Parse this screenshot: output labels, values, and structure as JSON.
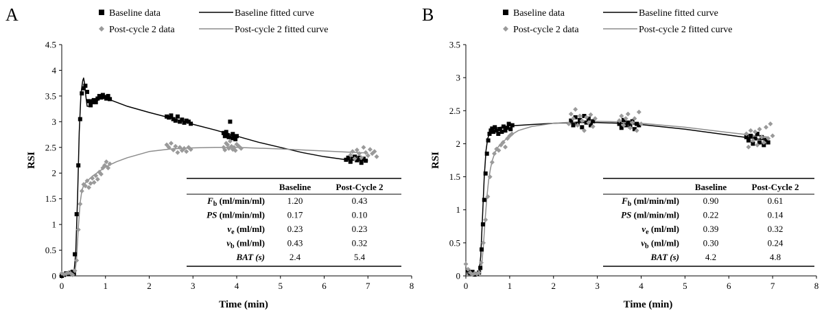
{
  "legend": {
    "baseline_data": "Baseline data",
    "baseline_fit": "Baseline fitted curve",
    "post_data": "Post-cycle 2 data",
    "post_fit": "Post-cycle 2 fitted curve"
  },
  "colors": {
    "baseline": "#000000",
    "post": "#8c8c8c",
    "post_marker": "#9a9a9a"
  },
  "table_header": {
    "col1": "Baseline",
    "col2": "Post-Cycle 2"
  },
  "table_params": [
    {
      "sym": "F",
      "sub": "b",
      "unit": " (ml/min/ml)",
      "symItalic": true
    },
    {
      "sym": "PS",
      "sub": "",
      "unit": " (ml/min/ml)",
      "symItalic": true
    },
    {
      "sym": "v",
      "sub": "e",
      "unit": " (ml/ml)",
      "symItalic": true
    },
    {
      "sym": "v",
      "sub": "b",
      "unit": " (ml/ml)",
      "symItalic": true
    },
    {
      "sym": "BAT (s)",
      "sub": "",
      "unit": "",
      "symItalic": true
    }
  ],
  "chart_data": [
    {
      "panel": "A",
      "type": "scatter",
      "xlabel": "Time (min)",
      "ylabel": "RSI",
      "xlim": [
        0,
        8
      ],
      "ylim": [
        0,
        4.5
      ],
      "xticks": [
        "0",
        "1",
        "2",
        "3",
        "4",
        "5",
        "6",
        "7",
        "8"
      ],
      "yticks": [
        "0",
        "0.5",
        "1",
        "1.5",
        "2",
        "2.5",
        "3",
        "3.5",
        "4",
        "4.5"
      ],
      "table": {
        "baseline": [
          "1.20",
          "0.17",
          "0.23",
          "0.43",
          "2.4"
        ],
        "post": [
          "0.43",
          "0.10",
          "0.23",
          "0.32",
          "5.4"
        ]
      },
      "series": [
        {
          "name": "Baseline data",
          "kind": "points",
          "x": [
            0.0,
            0.05,
            0.1,
            0.15,
            0.2,
            0.25,
            0.28,
            0.3,
            0.34,
            0.38,
            0.42,
            0.46,
            0.5,
            0.54,
            0.58,
            0.62,
            0.66,
            0.7,
            0.74,
            0.78,
            0.82,
            0.86,
            0.9,
            0.94,
            0.98,
            1.02,
            1.06,
            1.1,
            2.4,
            2.45,
            2.5,
            2.55,
            2.6,
            2.65,
            2.7,
            2.75,
            2.8,
            2.85,
            2.9,
            2.95,
            3.7,
            3.73,
            3.76,
            3.79,
            3.82,
            3.85,
            3.88,
            3.91,
            3.94,
            3.97,
            4.0,
            6.5,
            6.55,
            6.6,
            6.65,
            6.7,
            6.75,
            6.8,
            6.85,
            6.9,
            6.95
          ],
          "y": [
            0.0,
            0.02,
            0.05,
            0.04,
            0.06,
            0.08,
            0.05,
            0.42,
            1.2,
            2.15,
            3.05,
            3.55,
            3.65,
            3.7,
            3.58,
            3.4,
            3.32,
            3.38,
            3.42,
            3.38,
            3.45,
            3.5,
            3.47,
            3.52,
            3.48,
            3.45,
            3.5,
            3.44,
            3.1,
            3.08,
            3.12,
            3.05,
            3.02,
            3.1,
            3.0,
            3.04,
            2.98,
            3.02,
            3.0,
            2.96,
            2.78,
            2.72,
            2.8,
            2.74,
            2.7,
            3.0,
            2.68,
            2.76,
            2.7,
            2.66,
            2.72,
            2.26,
            2.3,
            2.22,
            2.28,
            2.32,
            2.25,
            2.3,
            2.2,
            2.28,
            2.24
          ]
        },
        {
          "name": "Post-cycle 2 data",
          "kind": "points",
          "x": [
            0.0,
            0.05,
            0.1,
            0.15,
            0.2,
            0.25,
            0.3,
            0.34,
            0.38,
            0.42,
            0.46,
            0.5,
            0.54,
            0.58,
            0.62,
            0.66,
            0.7,
            0.74,
            0.78,
            0.82,
            0.86,
            0.9,
            0.94,
            0.98,
            1.02,
            1.06,
            1.1,
            2.4,
            2.45,
            2.5,
            2.55,
            2.6,
            2.65,
            2.7,
            2.75,
            2.8,
            2.85,
            2.9,
            2.95,
            3.7,
            3.73,
            3.76,
            3.79,
            3.82,
            3.85,
            3.88,
            3.91,
            3.94,
            3.97,
            4.0,
            4.05,
            4.1,
            6.6,
            6.65,
            6.7,
            6.75,
            6.8,
            6.85,
            6.9,
            6.95,
            7.0,
            7.05,
            7.1,
            7.15,
            7.2
          ],
          "y": [
            0.05,
            0.03,
            0.04,
            0.06,
            0.05,
            0.02,
            0.1,
            0.3,
            0.9,
            1.4,
            1.65,
            1.78,
            1.75,
            1.85,
            1.72,
            1.8,
            1.9,
            1.82,
            1.95,
            1.88,
            2.02,
            1.98,
            2.1,
            2.15,
            2.22,
            2.1,
            2.18,
            2.55,
            2.5,
            2.58,
            2.45,
            2.52,
            2.4,
            2.5,
            2.44,
            2.48,
            2.42,
            2.5,
            2.46,
            2.5,
            2.45,
            2.58,
            2.55,
            2.48,
            2.62,
            2.52,
            2.46,
            2.5,
            2.44,
            2.56,
            2.52,
            2.48,
            2.35,
            2.42,
            2.28,
            2.45,
            2.38,
            2.3,
            2.5,
            2.4,
            2.34,
            2.46,
            2.38,
            2.42,
            2.32
          ]
        },
        {
          "name": "Baseline fitted curve",
          "kind": "line",
          "x": [
            0,
            0.28,
            0.32,
            0.36,
            0.4,
            0.44,
            0.48,
            0.5,
            0.52,
            0.55,
            0.58,
            0.62,
            0.66,
            0.7,
            0.75,
            0.8,
            0.85,
            0.9,
            1.0,
            1.5,
            2.0,
            2.5,
            3.0,
            3.5,
            4.0,
            4.5,
            5.0,
            5.5,
            6.0,
            6.5,
            7.0
          ],
          "y": [
            0.04,
            0.06,
            0.45,
            1.5,
            2.8,
            3.55,
            3.8,
            3.85,
            3.75,
            3.5,
            3.3,
            3.3,
            3.4,
            3.45,
            3.35,
            3.38,
            3.46,
            3.48,
            3.46,
            3.3,
            3.18,
            3.07,
            2.95,
            2.84,
            2.72,
            2.6,
            2.5,
            2.4,
            2.32,
            2.26,
            2.24
          ]
        },
        {
          "name": "Post-cycle 2 fitted curve",
          "kind": "line",
          "x": [
            0,
            0.3,
            0.34,
            0.38,
            0.42,
            0.46,
            0.5,
            0.55,
            0.6,
            0.7,
            0.8,
            0.9,
            1.0,
            1.25,
            1.5,
            2.0,
            2.5,
            3.0,
            3.5,
            4.0,
            5.0,
            6.0,
            7.0
          ],
          "y": [
            0.03,
            0.05,
            0.35,
            0.95,
            1.42,
            1.66,
            1.76,
            1.82,
            1.86,
            1.94,
            2.0,
            2.06,
            2.12,
            2.22,
            2.3,
            2.42,
            2.47,
            2.49,
            2.5,
            2.5,
            2.47,
            2.43,
            2.39
          ]
        }
      ]
    },
    {
      "panel": "B",
      "type": "scatter",
      "xlabel": "Time (min)",
      "ylabel": "RSI",
      "xlim": [
        0,
        8
      ],
      "ylim": [
        0,
        3.5
      ],
      "xticks": [
        "0",
        "1",
        "2",
        "3",
        "4",
        "5",
        "6",
        "7",
        "8"
      ],
      "yticks": [
        "0",
        "0.5",
        "1",
        "1.5",
        "2",
        "2.5",
        "3",
        "3.5"
      ],
      "table": {
        "baseline": [
          "0.90",
          "0.22",
          "0.39",
          "0.30",
          "4.2"
        ],
        "post": [
          "0.61",
          "0.14",
          "0.32",
          "0.24",
          "4.8"
        ]
      },
      "series": [
        {
          "name": "Baseline data",
          "kind": "points",
          "x": [
            0.05,
            0.1,
            0.15,
            0.2,
            0.25,
            0.3,
            0.33,
            0.36,
            0.39,
            0.42,
            0.45,
            0.48,
            0.51,
            0.54,
            0.57,
            0.6,
            0.63,
            0.66,
            0.7,
            0.74,
            0.78,
            0.82,
            0.86,
            0.9,
            0.94,
            0.98,
            1.02,
            1.06,
            2.4,
            2.45,
            2.5,
            2.55,
            2.6,
            2.65,
            2.7,
            2.75,
            2.8,
            2.85,
            2.9,
            3.5,
            3.55,
            3.6,
            3.65,
            3.7,
            3.75,
            3.8,
            3.85,
            3.9,
            3.95,
            6.4,
            6.45,
            6.5,
            6.55,
            6.6,
            6.65,
            6.7,
            6.75,
            6.8,
            6.85,
            6.9
          ],
          "y": [
            0.08,
            0.04,
            0.06,
            0.02,
            0.03,
            0.05,
            0.12,
            0.4,
            0.78,
            1.15,
            1.55,
            1.85,
            2.05,
            2.15,
            2.2,
            2.23,
            2.18,
            2.25,
            2.2,
            2.15,
            2.22,
            2.18,
            2.26,
            2.2,
            2.24,
            2.3,
            2.22,
            2.28,
            2.35,
            2.28,
            2.4,
            2.3,
            2.36,
            2.25,
            2.42,
            2.32,
            2.38,
            2.28,
            2.34,
            2.3,
            2.24,
            2.36,
            2.28,
            2.32,
            2.26,
            2.34,
            2.22,
            2.3,
            2.28,
            2.1,
            2.05,
            2.12,
            2.0,
            2.08,
            2.15,
            2.02,
            2.1,
            1.98,
            2.06,
            2.02
          ]
        },
        {
          "name": "Post-cycle 2 data",
          "kind": "points",
          "x": [
            0.0,
            0.05,
            0.1,
            0.15,
            0.2,
            0.25,
            0.3,
            0.35,
            0.4,
            0.45,
            0.5,
            0.55,
            0.6,
            0.65,
            0.7,
            0.75,
            0.8,
            0.85,
            0.9,
            0.95,
            1.0,
            1.05,
            2.35,
            2.4,
            2.45,
            2.5,
            2.55,
            2.6,
            2.65,
            2.7,
            2.75,
            2.8,
            2.85,
            2.9,
            2.95,
            3.5,
            3.55,
            3.6,
            3.65,
            3.7,
            3.75,
            3.8,
            3.85,
            3.9,
            3.95,
            4.0,
            6.4,
            6.45,
            6.5,
            6.55,
            6.6,
            6.65,
            6.7,
            6.75,
            6.8,
            6.85,
            6.9,
            6.95,
            7.0
          ],
          "y": [
            0.18,
            0.1,
            0.05,
            0.02,
            0.04,
            0.03,
            0.05,
            0.2,
            0.5,
            0.85,
            1.2,
            1.5,
            1.72,
            1.85,
            1.92,
            1.9,
            1.98,
            2.02,
            1.95,
            2.08,
            2.12,
            2.15,
            2.3,
            2.45,
            2.38,
            2.52,
            2.28,
            2.42,
            2.35,
            2.2,
            2.4,
            2.32,
            2.44,
            2.26,
            2.38,
            2.35,
            2.42,
            2.28,
            2.38,
            2.45,
            2.24,
            2.32,
            2.38,
            2.2,
            2.48,
            2.3,
            2.15,
            1.95,
            2.2,
            2.05,
            2.18,
            1.98,
            2.22,
            2.1,
            2.02,
            2.25,
            2.08,
            2.3,
            2.12
          ]
        },
        {
          "name": "Baseline fitted curve",
          "kind": "line",
          "x": [
            0,
            0.3,
            0.34,
            0.38,
            0.42,
            0.46,
            0.5,
            0.54,
            0.58,
            0.62,
            0.7,
            0.8,
            1.0,
            1.5,
            2.0,
            2.5,
            3.0,
            3.5,
            4.0,
            5.0,
            6.0,
            6.9
          ],
          "y": [
            0.03,
            0.04,
            0.3,
            0.9,
            1.5,
            1.9,
            2.08,
            2.16,
            2.2,
            2.22,
            2.24,
            2.25,
            2.27,
            2.29,
            2.31,
            2.32,
            2.32,
            2.31,
            2.29,
            2.22,
            2.13,
            2.05
          ]
        },
        {
          "name": "Post-cycle 2 fitted curve",
          "kind": "line",
          "x": [
            0,
            0.32,
            0.36,
            0.4,
            0.44,
            0.48,
            0.52,
            0.56,
            0.6,
            0.65,
            0.7,
            0.8,
            0.9,
            1.0,
            1.2,
            1.5,
            2.0,
            2.5,
            3.0,
            3.5,
            4.0,
            5.0,
            6.0,
            6.9
          ],
          "y": [
            0.04,
            0.05,
            0.15,
            0.45,
            0.85,
            1.2,
            1.45,
            1.62,
            1.74,
            1.84,
            1.92,
            2.0,
            2.06,
            2.12,
            2.2,
            2.26,
            2.31,
            2.33,
            2.34,
            2.33,
            2.31,
            2.25,
            2.17,
            2.1
          ]
        }
      ]
    }
  ]
}
